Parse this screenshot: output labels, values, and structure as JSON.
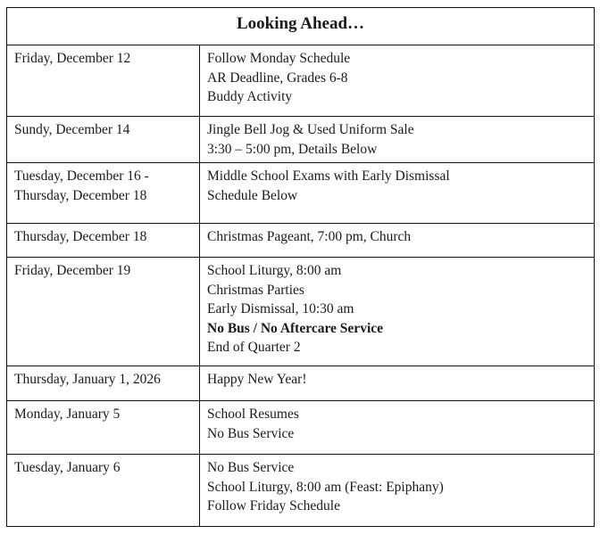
{
  "title": "Looking Ahead…",
  "rows": [
    {
      "date": [
        "Friday, December 12"
      ],
      "events": [
        {
          "text": "Follow Monday Schedule"
        },
        {
          "text": "AR Deadline, Grades 6-8"
        },
        {
          "text": "Buddy Activity"
        }
      ]
    },
    {
      "date": [
        "Sundy, December 14"
      ],
      "events": [
        {
          "text": "Jingle Bell Jog & Used Uniform Sale"
        },
        {
          "text": "3:30 – 5:00 pm, Details Below"
        }
      ]
    },
    {
      "date": [
        "Tuesday, December 16 -",
        "Thursday, December 18"
      ],
      "events": [
        {
          "text": "Middle School Exams with Early Dismissal"
        },
        {
          "text": "Schedule Below"
        }
      ]
    },
    {
      "date": [
        "Thursday, December 18"
      ],
      "events": [
        {
          "text": "Christmas Pageant, 7:00 pm, Church"
        }
      ]
    },
    {
      "date": [
        "Friday, December 19"
      ],
      "events": [
        {
          "text": "School Liturgy, 8:00 am"
        },
        {
          "text": "Christmas Parties"
        },
        {
          "text": "Early Dismissal, 10:30 am"
        },
        {
          "text": "No Bus / No Aftercare Service",
          "bold": true
        },
        {
          "text": "End of Quarter 2"
        }
      ]
    },
    {
      "date": [
        "Thursday, January 1, 2026"
      ],
      "events": [
        {
          "text": "Happy New Year!"
        }
      ]
    },
    {
      "date": [
        "Monday, January 5"
      ],
      "events": [
        {
          "text": "School Resumes"
        },
        {
          "text": "No Bus Service"
        }
      ]
    },
    {
      "date": [
        "Tuesday, January 6"
      ],
      "events": [
        {
          "text": "No Bus Service"
        },
        {
          "text": "School Liturgy, 8:00 am (Feast: Epiphany)"
        },
        {
          "text": "Follow Friday Schedule"
        }
      ]
    }
  ]
}
